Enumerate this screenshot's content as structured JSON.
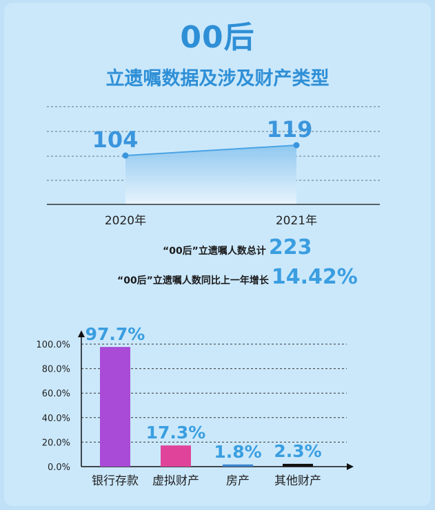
{
  "header": {
    "title": "00后",
    "subtitle": "立遗嘱数据及涉及财产类型"
  },
  "stats": [
    {
      "label": "“00后”立遗嘱人数总计",
      "value": "223"
    },
    {
      "label": "“00后”立遗嘱人数同比上一年增长",
      "value": "14.42%"
    }
  ],
  "colors": {
    "accent": "#3a9ee0",
    "title": "#2f8fd6",
    "bar_bank": "#a94bd6",
    "bar_virtual": "#e0449a",
    "bar_house": "#3a86d0",
    "bar_other": "#111111"
  },
  "chart_data": [
    {
      "type": "area",
      "categories": [
        "2020年",
        "2021年"
      ],
      "values": [
        104,
        119
      ],
      "data_labels": [
        "104",
        "119"
      ],
      "grid": "dashed-horizontal"
    },
    {
      "type": "bar",
      "categories": [
        "银行存款",
        "虚拟财产",
        "房产",
        "其他财产"
      ],
      "values": [
        97.7,
        17.3,
        1.8,
        2.3
      ],
      "data_labels": [
        "97.7%",
        "17.3%",
        "1.8%",
        "2.3%"
      ],
      "bar_colors": [
        "#a94bd6",
        "#e0449a",
        "#3a86d0",
        "#111111"
      ],
      "ylim": [
        0,
        100
      ],
      "yticks": [
        "0.0%",
        "20.0%",
        "40.0%",
        "60.0%",
        "80.0%",
        "100.0%"
      ],
      "grid": "dashed-horizontal"
    }
  ]
}
